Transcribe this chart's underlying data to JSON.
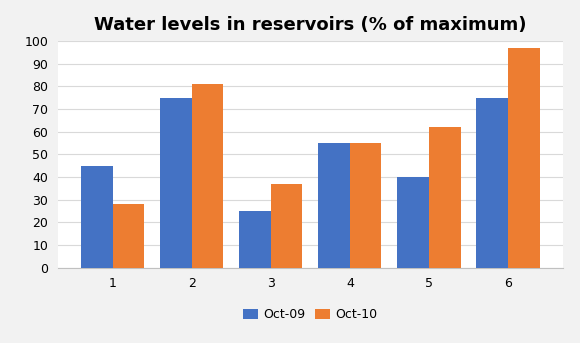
{
  "title": "Water levels in reservoirs (% of maximum)",
  "categories": [
    "1",
    "2",
    "3",
    "4",
    "5",
    "6"
  ],
  "oct09": [
    45,
    75,
    25,
    55,
    40,
    75
  ],
  "oct10": [
    28,
    81,
    37,
    55,
    62,
    97
  ],
  "bar_color_09": "#4472C4",
  "bar_color_10": "#ED7D31",
  "legend_labels": [
    "Oct-09",
    "Oct-10"
  ],
  "ylim": [
    0,
    100
  ],
  "yticks": [
    0,
    10,
    20,
    30,
    40,
    50,
    60,
    70,
    80,
    90,
    100
  ],
  "bar_width": 0.4,
  "title_fontsize": 13,
  "tick_fontsize": 9,
  "legend_fontsize": 9,
  "fig_bg_color": "#f2f2f2",
  "plot_bg_color": "#ffffff",
  "grid_color": "#d9d9d9"
}
